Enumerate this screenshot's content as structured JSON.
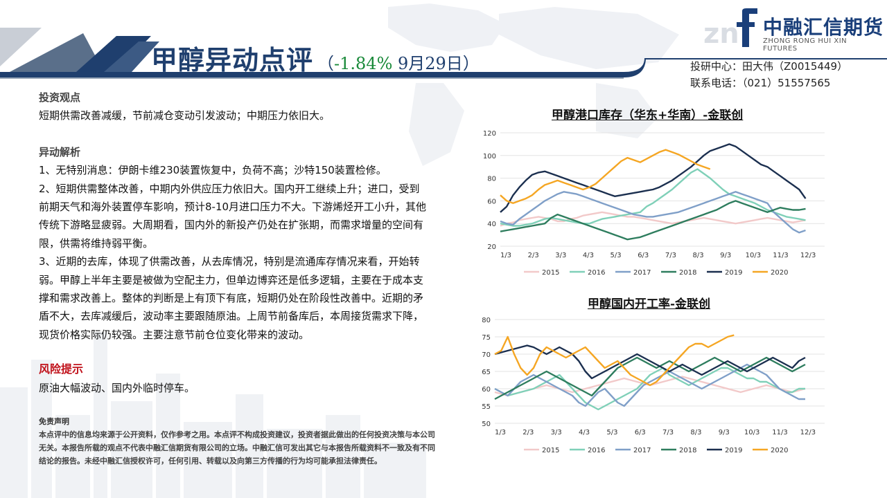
{
  "header": {
    "title_main": "甲醇异动点评",
    "title_paren_open": "（",
    "title_change": "-1.84%",
    "title_date": " 9月29日）"
  },
  "logo": {
    "name_cn": "中融汇信期货",
    "name_en": "ZHONG RONG HUI XIN FUTURES"
  },
  "contact": {
    "line1": "投研中心：田大伟（Z0015449）",
    "line2": "联系电话：（021）51557565"
  },
  "content": {
    "view_heading": "投资观点",
    "view_text": "短期供需改善减缓，节前减仓变动引发波动；中期压力依旧大。",
    "analysis_heading": "异动解析",
    "analysis_items": [
      "1、无特别消息：伊朗卡维230装置恢复中，负荷不高；沙特150装置检修。",
      "2、短期供需整体改善，中期内外供应压力依旧大。国内开工继续上升；进口，受到前期天气和海外装置停车影响，预计8-10月进口压力不大。下游烯烃开工小升，其他传统下游略显疲弱。大周期看，国内外的新投产仍处在扩张期，而需求增量的空间有限，供需将维持弱平衡。",
      "3、近期的去库，体现了供需改善，从去库情况，特别是流通库存情况来看，开始转弱。甲醇上半年主要是被做为空配主力，但单边博弈还是低多逻辑，主要在于成本支撑和需求改善上。整体的判断是上有顶下有底，短期仍处在阶段性改善中。近期的矛盾不大，去库减缓后，波动率主要跟随原油。上周节前备库后，本周接货需求下降，现货价格实际仍较强。主要注意节前仓位变化带来的波动。"
    ],
    "risk_heading": "风险提示",
    "risk_text": "原油大幅波动、国内外临时停车。"
  },
  "disclaimer": {
    "title": "免责声明",
    "text": "本点评中的信息均来源于公开资料，仅作参考之用。本点评不构成投资建议，投资者据此做出的任何投资决策与本公司无关。本报告所载的观点不代表中融汇信期货有限公司的立场。中融汇信可发出其它与本报告所载资料不一致及有不同结论的报告。未经中融汇信授权许可，任何引用、转载以及向第三方传播的行为均可能承担法律责任。"
  },
  "chart_data": [
    {
      "type": "line",
      "title": "甲醇港口库存（华东+华南）-金联创",
      "ylim": [
        20,
        120
      ],
      "yticks": [
        20,
        40,
        60,
        80,
        100,
        120
      ],
      "x_labels": [
        "1/3",
        "2/3",
        "3/3",
        "4/3",
        "5/3",
        "6/3",
        "7/3",
        "8/3",
        "9/3",
        "10/3",
        "11/3",
        "12/3"
      ],
      "grid": true,
      "legend": "bottom",
      "series": [
        {
          "name": "2015",
          "color": "#f2c9c9",
          "values": [
            38,
            40,
            41,
            43,
            44,
            45,
            46,
            45,
            44,
            42,
            42,
            44,
            45,
            47,
            48,
            49,
            50,
            49,
            48,
            47,
            46,
            46,
            45,
            44,
            43,
            42,
            41,
            40,
            41,
            42,
            43,
            44,
            45,
            44,
            43,
            42,
            41,
            40,
            41,
            42,
            43,
            44,
            45,
            44,
            43,
            42,
            41,
            42,
            43
          ]
        },
        {
          "name": "2016",
          "color": "#7fd0b8",
          "values": [
            40,
            39,
            38,
            38,
            39,
            40,
            42,
            44,
            45,
            44,
            43,
            42,
            41,
            40,
            40,
            42,
            44,
            45,
            46,
            47,
            48,
            49,
            50,
            55,
            58,
            62,
            66,
            70,
            75,
            80,
            85,
            88,
            84,
            80,
            75,
            70,
            66,
            64,
            62,
            60,
            58,
            55,
            52,
            50,
            48,
            46,
            45,
            44,
            43
          ]
        },
        {
          "name": "2017",
          "color": "#7f9fc8",
          "values": [
            42,
            40,
            39,
            44,
            48,
            52,
            56,
            60,
            63,
            66,
            68,
            67,
            66,
            64,
            62,
            60,
            58,
            56,
            54,
            52,
            50,
            48,
            47,
            46,
            46,
            47,
            48,
            49,
            50,
            52,
            54,
            56,
            58,
            60,
            62,
            64,
            66,
            68,
            66,
            64,
            62,
            60,
            58,
            50,
            45,
            40,
            35,
            32,
            34
          ]
        },
        {
          "name": "2018",
          "color": "#2e7d5e",
          "values": [
            33,
            34,
            35,
            36,
            37,
            38,
            39,
            40,
            45,
            48,
            46,
            44,
            42,
            40,
            38,
            36,
            34,
            32,
            30,
            28,
            26,
            27,
            28,
            30,
            32,
            34,
            36,
            38,
            40,
            42,
            44,
            46,
            48,
            50,
            52,
            55,
            58,
            60,
            58,
            56,
            54,
            52,
            50,
            52,
            54,
            53,
            52,
            52,
            53
          ]
        },
        {
          "name": "2019",
          "color": "#1b2f4f",
          "values": [
            50,
            55,
            65,
            72,
            78,
            83,
            85,
            86,
            84,
            82,
            80,
            78,
            76,
            74,
            72,
            70,
            68,
            66,
            64,
            65,
            66,
            67,
            68,
            69,
            70,
            72,
            75,
            78,
            82,
            86,
            90,
            95,
            100,
            104,
            106,
            108,
            110,
            108,
            104,
            100,
            96,
            92,
            90,
            86,
            82,
            78,
            74,
            70,
            62
          ]
        },
        {
          "name": "2020",
          "color": "#f5a623",
          "values": [
            65,
            60,
            58,
            60,
            62,
            65,
            70,
            74,
            76,
            78,
            76,
            74,
            72,
            70,
            72,
            75,
            80,
            85,
            90,
            95,
            98,
            96,
            94,
            97,
            100,
            103,
            105,
            103,
            101,
            98,
            95,
            92,
            90,
            88
          ]
        }
      ]
    },
    {
      "type": "line",
      "title": "甲醇国内开工率-金联创",
      "ylim": [
        50,
        80
      ],
      "yticks": [
        50,
        55,
        60,
        65,
        70,
        75,
        80
      ],
      "x_labels": [
        "1/3",
        "2/3",
        "3/3",
        "4/3",
        "5/3",
        "6/3",
        "7/3",
        "8/3",
        "9/3",
        "10/3",
        "11/3",
        "12/3"
      ],
      "grid": true,
      "legend": "bottom",
      "series": [
        {
          "name": "2015",
          "color": "#f2c9c9",
          "values": [
            59,
            58.5,
            58,
            58.5,
            59,
            59.5,
            60,
            60.5,
            61,
            60.5,
            60,
            59.5,
            59,
            59.5,
            60,
            60.5,
            61,
            61.5,
            62,
            62.5,
            63,
            62.5,
            62,
            61.5,
            61,
            61.5,
            62,
            62.5,
            63,
            63.5,
            63,
            62.5,
            62,
            61.5,
            61,
            60.5,
            60,
            59.5,
            59,
            59.5,
            60,
            60.5,
            61,
            60.5,
            60,
            59.5,
            59,
            59.5,
            60
          ]
        },
        {
          "name": "2016",
          "color": "#7fd0b8",
          "values": [
            60,
            59,
            58,
            58.5,
            59,
            59.5,
            60,
            61,
            62,
            63,
            64,
            62,
            60,
            58,
            56,
            55,
            54,
            55,
            56,
            57,
            58,
            59,
            60,
            62,
            64,
            65,
            66,
            64,
            63,
            62,
            61,
            62,
            63,
            64,
            65,
            66,
            66,
            65,
            64,
            63,
            63,
            62,
            62,
            61,
            60,
            59,
            59,
            60,
            60
          ]
        },
        {
          "name": "2017",
          "color": "#7f9fc8",
          "values": [
            60,
            59,
            58,
            60,
            62,
            63,
            64,
            63,
            62,
            61,
            60,
            59,
            58,
            56,
            55,
            57,
            59,
            60,
            58,
            56,
            55,
            57,
            59,
            61,
            62,
            63,
            64,
            65,
            64,
            63,
            62,
            61,
            60,
            61,
            62,
            63,
            64,
            65,
            66,
            67,
            66,
            65,
            64,
            62,
            60,
            59,
            58,
            57,
            57
          ]
        },
        {
          "name": "2018",
          "color": "#2e7d5e",
          "values": [
            57,
            58,
            59,
            60,
            61,
            62,
            63,
            64,
            65,
            64,
            63,
            62,
            61,
            60,
            59,
            58,
            60,
            62,
            64,
            66,
            67,
            68,
            69,
            68,
            67,
            66,
            67,
            68,
            67,
            66,
            65,
            66,
            67,
            68,
            69,
            68,
            67,
            66,
            65,
            66,
            67,
            68,
            69,
            68,
            67,
            66,
            65,
            66,
            67
          ]
        },
        {
          "name": "2019",
          "color": "#1b2f4f",
          "values": [
            70,
            70.5,
            71,
            71.5,
            72,
            72.5,
            72,
            71,
            70,
            71,
            72,
            71,
            70,
            68,
            65,
            63,
            64,
            65,
            66,
            67,
            68,
            69,
            70,
            69,
            68,
            67,
            66,
            65,
            66,
            67,
            66,
            65,
            64,
            65,
            66,
            67,
            68,
            67,
            66,
            65,
            66,
            67,
            68,
            69,
            68,
            67,
            66,
            68,
            69
          ]
        },
        {
          "name": "2020",
          "color": "#f5a623",
          "values": [
            70,
            71,
            75,
            70,
            66,
            64,
            66,
            70,
            72,
            71,
            70,
            69,
            70,
            71,
            72,
            70,
            68,
            66,
            67,
            68,
            66,
            64,
            63,
            62,
            61,
            62,
            64,
            66,
            68,
            70,
            72,
            73,
            73,
            72,
            73,
            74,
            75,
            75.5
          ]
        }
      ]
    }
  ]
}
